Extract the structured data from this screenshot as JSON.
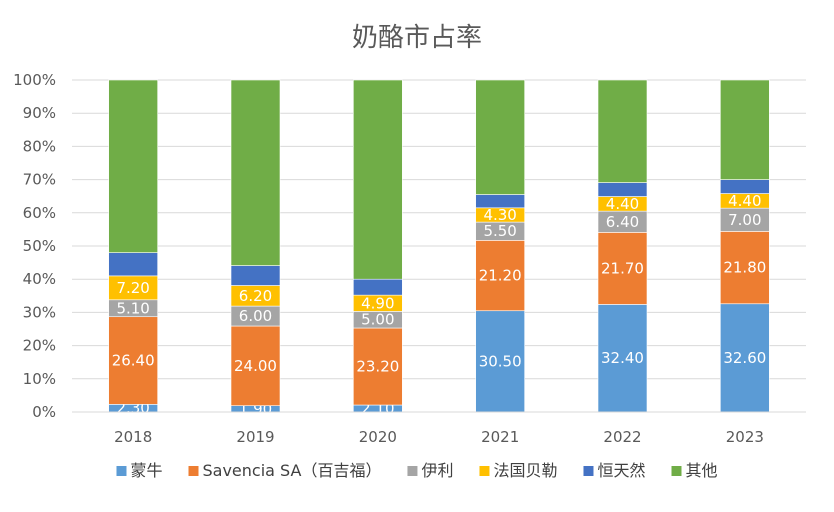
{
  "chart_data": {
    "type": "bar",
    "stacked": true,
    "normalized": true,
    "title": "奶酪市占率",
    "xlabel": "",
    "ylabel": "",
    "ylim": [
      0,
      100
    ],
    "yticks": [
      "0%",
      "10%",
      "20%",
      "30%",
      "40%",
      "50%",
      "60%",
      "70%",
      "80%",
      "90%",
      "100%"
    ],
    "categories": [
      "2018",
      "2019",
      "2020",
      "2021",
      "2022",
      "2023"
    ],
    "grid": true,
    "legend_position": "bottom",
    "series": [
      {
        "name": "蒙牛",
        "color": "#5B9BD5",
        "values": [
          2.3,
          1.9,
          2.1,
          30.5,
          32.4,
          32.6
        ],
        "labels": [
          "2.30",
          "1.90",
          "2.10",
          "30.50",
          "32.40",
          "32.60"
        ]
      },
      {
        "name": "Savencia SA（百吉福）",
        "color": "#ED7D31",
        "values": [
          26.4,
          24.0,
          23.2,
          21.2,
          21.7,
          21.8
        ],
        "labels": [
          "26.40",
          "24.00",
          "23.20",
          "21.20",
          "21.70",
          "21.80"
        ]
      },
      {
        "name": "伊利",
        "color": "#A5A5A5",
        "values": [
          5.1,
          6.0,
          5.0,
          5.5,
          6.4,
          7.0
        ],
        "labels": [
          "5.10",
          "6.00",
          "5.00",
          "5.50",
          "6.40",
          "7.00"
        ]
      },
      {
        "name": "法国贝勒",
        "color": "#FFC000",
        "values": [
          7.2,
          6.2,
          4.9,
          4.3,
          4.4,
          4.4
        ],
        "labels": [
          "7.20",
          "6.20",
          "4.90",
          "4.30",
          "4.40",
          "4.40"
        ]
      },
      {
        "name": "恒天然",
        "color": "#4472C4",
        "values": [
          7.0,
          6.0,
          4.8,
          4.0,
          4.2,
          4.2
        ],
        "labels": [
          "",
          "",
          "",
          "",
          "",
          ""
        ]
      },
      {
        "name": "其他",
        "color": "#70AD47",
        "values": [
          52.0,
          55.9,
          60.0,
          34.5,
          30.9,
          30.0
        ],
        "labels": [
          "",
          "",
          "",
          "",
          "",
          ""
        ]
      }
    ]
  }
}
